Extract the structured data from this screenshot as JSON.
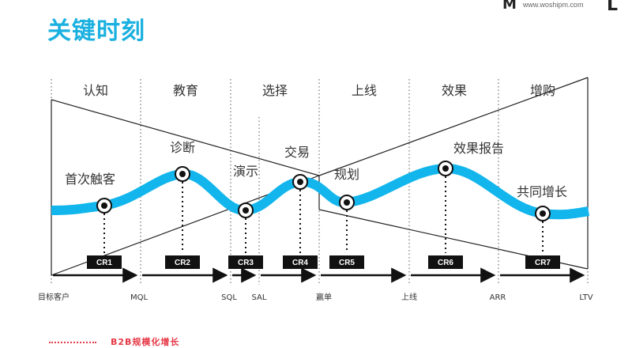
{
  "header": {
    "title": "关键时刻",
    "brand_logo": "M",
    "brand_url": "www.woshipm.com",
    "brand_mark": "L"
  },
  "stages": [
    "认知",
    "教育",
    "选择",
    "上线",
    "效果",
    "增购"
  ],
  "events": [
    "首次触客",
    "诊断",
    "演示",
    "交易",
    "规划",
    "效果报告",
    "共同增长"
  ],
  "conversion_rates": [
    "CR1",
    "CR2",
    "CR3",
    "CR4",
    "CR5",
    "CR6",
    "CR7"
  ],
  "milestones": [
    "目标客户",
    "MQL",
    "SQL",
    "SAL",
    "赢单",
    "上线",
    "ARR",
    "LTV"
  ],
  "footer": {
    "tag": "B2B规模化增长"
  },
  "colors": {
    "accent": "#1ab0e0",
    "curve": "#12b6ec",
    "badge": "#111111",
    "footer": "#e63946"
  }
}
